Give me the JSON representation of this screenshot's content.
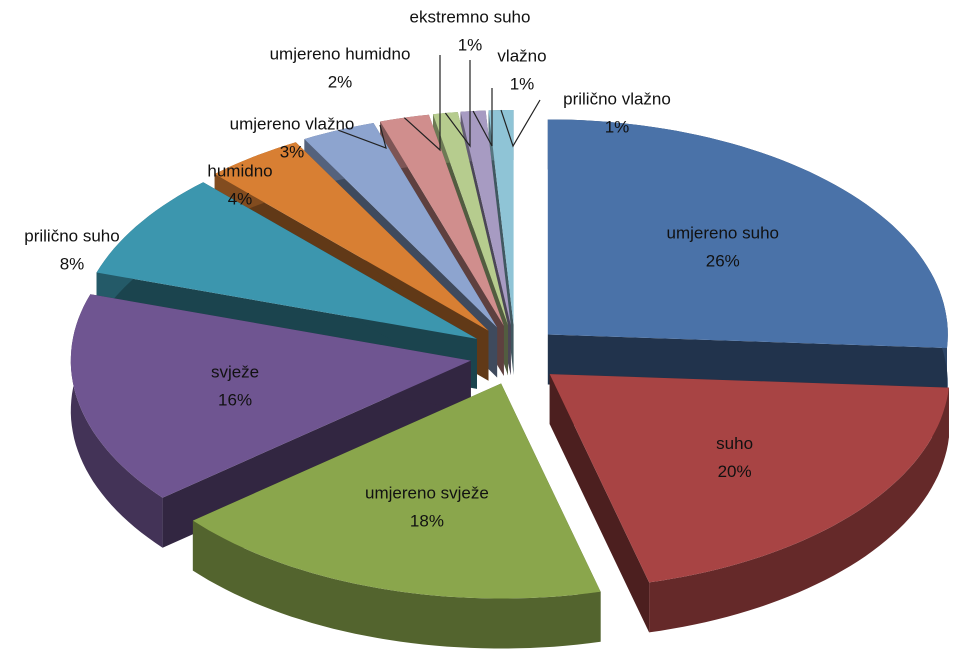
{
  "chart_data": {
    "type": "pie",
    "categories": [
      "umjereno suho",
      "suho",
      "umjereno svježe",
      "svježe",
      "prilično suho",
      "humidno",
      "umjereno vlažno",
      "umjereno humidno",
      "ekstremno suho",
      "vlažno",
      "prilično vlažno"
    ],
    "values": [
      26,
      20,
      18,
      16,
      8,
      4,
      3,
      2,
      1,
      1,
      1
    ],
    "value_labels": [
      "26%",
      "20%",
      "18%",
      "16%",
      "8%",
      "4%",
      "3%",
      "2%",
      "1%",
      "1%",
      "1%"
    ],
    "colors": [
      "#4a72a8",
      "#a84444",
      "#8aa64c",
      "#6f5591",
      "#3c96ae",
      "#d87f33",
      "#8da4cf",
      "#d08e8d",
      "#b6cc8e",
      "#a79bc2",
      "#8fc4d6"
    ]
  }
}
